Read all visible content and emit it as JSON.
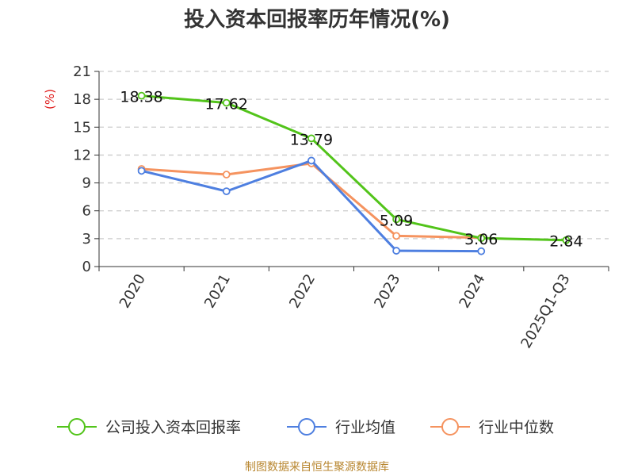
{
  "chart_data": {
    "type": "line",
    "title": "投入资本回报率历年情况(%)",
    "ylabel": "(%)",
    "categories": [
      "2020",
      "2021",
      "2022",
      "2023",
      "2024",
      "2025Q1-Q3"
    ],
    "yticks": [
      0,
      3,
      6,
      9,
      12,
      15,
      18,
      21
    ],
    "ylim": [
      0,
      21
    ],
    "grid": true,
    "legend_position": "bottom",
    "series": [
      {
        "name": "公司投入资本回报率",
        "color": "#52c41a",
        "values": [
          18.38,
          17.62,
          13.79,
          5.09,
          3.06,
          2.84
        ],
        "labels": [
          "18.38",
          "17.62",
          "13.79",
          "5.09",
          "3.06",
          "2.84"
        ]
      },
      {
        "name": "行业均值",
        "color": "#4e7fe0",
        "values": [
          10.3,
          8.1,
          11.4,
          1.7,
          1.65,
          null
        ]
      },
      {
        "name": "行业中位数",
        "color": "#f5935f",
        "values": [
          10.5,
          9.9,
          11.1,
          3.3,
          3.1,
          null
        ]
      }
    ]
  },
  "source": "制图数据来自恒生聚源数据库"
}
